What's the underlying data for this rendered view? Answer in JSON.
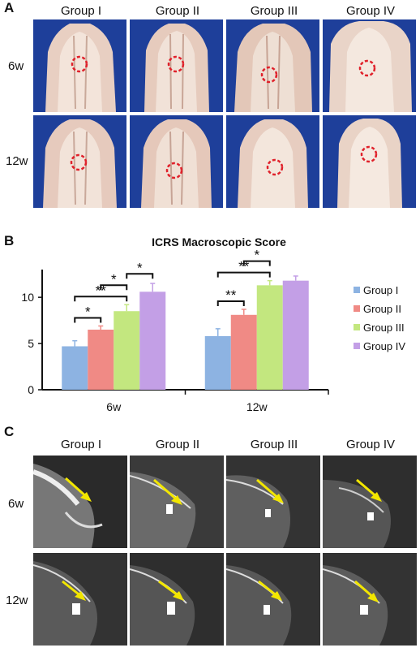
{
  "panels": {
    "a": {
      "letter": "A",
      "columns": [
        "Group I",
        "Group II",
        "Group III",
        "Group IV"
      ],
      "rows": [
        "6w",
        "12w"
      ]
    },
    "b": {
      "letter": "B"
    },
    "c": {
      "letter": "C",
      "columns": [
        "Group I",
        "Group II",
        "Group III",
        "Group IV"
      ],
      "rows": [
        "6w",
        "12w"
      ]
    }
  },
  "colors": {
    "photo_background": "#1e3f9a",
    "defect_circle": "#e0202a",
    "mri_arrow": "#f2e600"
  },
  "chart_data": {
    "type": "bar",
    "title": "ICRS Macroscopic Score",
    "xlabel": "",
    "ylabel": "",
    "categories": [
      "6w",
      "12w"
    ],
    "ylim": [
      0,
      13
    ],
    "yticks": [
      0,
      5,
      10
    ],
    "series": [
      {
        "name": "Group I",
        "color": "#8db3e2",
        "values": [
          4.7,
          5.8
        ],
        "errors": [
          0.6,
          0.8
        ]
      },
      {
        "name": "Group II",
        "color": "#f08a85",
        "values": [
          6.5,
          8.1
        ],
        "errors": [
          0.4,
          0.6
        ]
      },
      {
        "name": "Group III",
        "color": "#c3e77f",
        "values": [
          8.5,
          11.3
        ],
        "errors": [
          0.7,
          0.5
        ]
      },
      {
        "name": "Group IV",
        "color": "#c39fe6",
        "values": [
          10.6,
          11.8
        ],
        "errors": [
          0.9,
          0.5
        ]
      }
    ],
    "significance": [
      {
        "category": "6w",
        "from": 0,
        "to": 1,
        "label": "*"
      },
      {
        "category": "6w",
        "from": 0,
        "to": 2,
        "label": "**"
      },
      {
        "category": "6w",
        "from": 1,
        "to": 2,
        "label": "*"
      },
      {
        "category": "6w",
        "from": 2,
        "to": 3,
        "label": "*"
      },
      {
        "category": "12w",
        "from": 0,
        "to": 1,
        "label": "**"
      },
      {
        "category": "12w",
        "from": 0,
        "to": 2,
        "label": "**"
      },
      {
        "category": "12w",
        "from": 1,
        "to": 2,
        "label": "*"
      }
    ],
    "legend_position": "right",
    "grid": false
  }
}
